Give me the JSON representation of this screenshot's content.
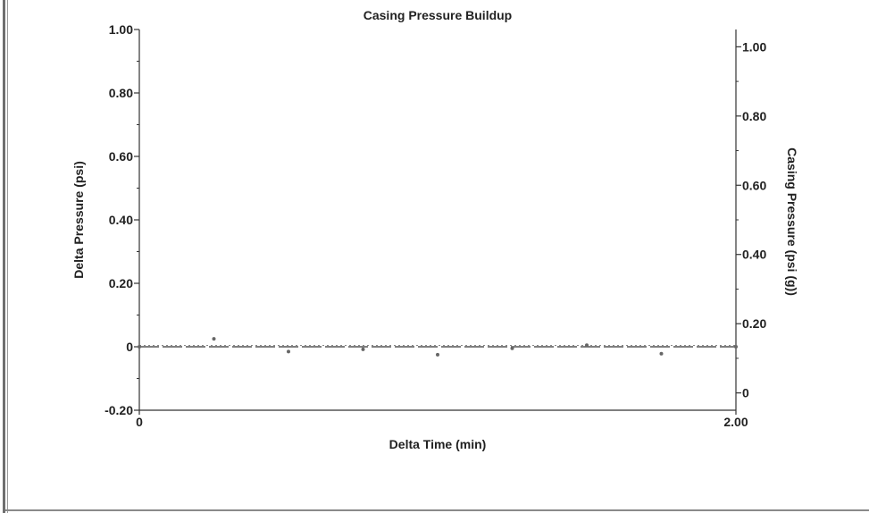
{
  "chart_data": {
    "type": "scatter",
    "title": "Casing Pressure Buildup",
    "xlabel": "Delta Time (min)",
    "ylabel": "Delta Pressure (psi)",
    "y2label": "Casing Pressure (psi (g))",
    "xlim": [
      0,
      2.0
    ],
    "ylim": [
      -0.2,
      1.0
    ],
    "y2lim": [
      -0.05,
      1.05
    ],
    "x_ticks": [
      "0",
      "2.00"
    ],
    "y_ticks": [
      {
        "value": 1.0,
        "label": "1.00"
      },
      {
        "value": 0.8,
        "label": "0.80"
      },
      {
        "value": 0.6,
        "label": "0.60"
      },
      {
        "value": 0.4,
        "label": "0.40"
      },
      {
        "value": 0.2,
        "label": "0.20"
      },
      {
        "value": 0.0,
        "label": "0"
      },
      {
        "value": -0.2,
        "label": "-0.20"
      }
    ],
    "y2_ticks": [
      {
        "value": 1.0,
        "label": "1.00"
      },
      {
        "value": 0.8,
        "label": "0.80"
      },
      {
        "value": 0.6,
        "label": "0.60"
      },
      {
        "value": 0.4,
        "label": "0.40"
      },
      {
        "value": 0.2,
        "label": "0.20"
      },
      {
        "value": 0.0,
        "label": "0"
      }
    ],
    "grid": false,
    "series": [
      {
        "axis": "left",
        "style": "points",
        "color": "#666666",
        "x": [
          0.0,
          0.25,
          0.5,
          0.75,
          1.0,
          1.25,
          1.5,
          1.75,
          2.0
        ],
        "y": [
          0.0,
          0.025,
          -0.015,
          -0.008,
          -0.025,
          -0.005,
          0.005,
          -0.022,
          0.0
        ]
      },
      {
        "axis": "left",
        "style": "dashed-line",
        "color": "#555555",
        "x": [
          0.0,
          2.0
        ],
        "y": [
          0.0,
          0.0
        ]
      }
    ]
  }
}
